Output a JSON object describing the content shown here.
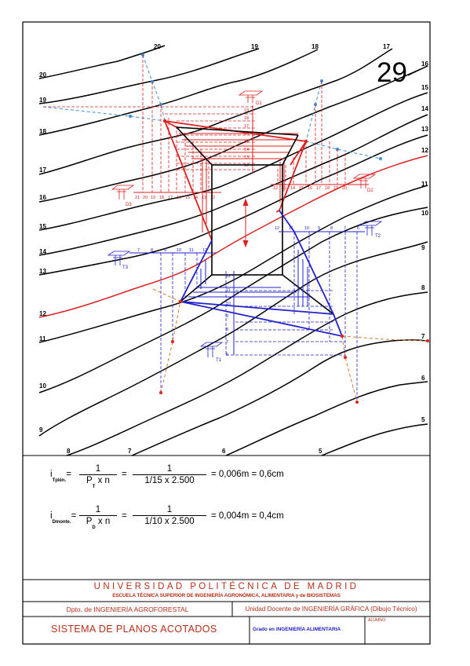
{
  "sheet": {
    "number": "29"
  },
  "contours": {
    "left_labels": [
      "20",
      "19",
      "18",
      "17",
      "16",
      "15",
      "14",
      "13",
      "12",
      "11",
      "10",
      "9",
      "8"
    ],
    "top_labels": [
      "20",
      "19",
      "18",
      "17"
    ],
    "right_labels": [
      "16",
      "15",
      "14",
      "13",
      "12",
      "11",
      "10",
      "9",
      "8",
      "7",
      "6",
      "5"
    ],
    "bottom_labels": [
      "7",
      "6",
      "5"
    ]
  },
  "upper_scales": {
    "left": [
      "21",
      "20",
      "19",
      "18",
      "17",
      "16",
      "15",
      "14",
      "13",
      "12"
    ],
    "right": [
      "12",
      "13",
      "14",
      "15",
      "16",
      "17",
      "18",
      "19",
      "20"
    ],
    "vertical": [
      "19",
      "18",
      "17",
      "16",
      "15",
      "14",
      "13",
      "12"
    ]
  },
  "lower_scales": {
    "top": [
      "7",
      "8",
      "9",
      "10",
      "11",
      "12"
    ],
    "right": [
      "12",
      "11",
      "10",
      "9",
      "8",
      "7",
      "6"
    ],
    "vertical": [
      "12",
      "11",
      "10",
      "9",
      "8",
      "7",
      "6"
    ]
  },
  "stations": {
    "d1": "D1",
    "d2": "D2",
    "d3": "D3",
    "t1": "T1",
    "t2": "T2",
    "t3": "T3"
  },
  "formulas": {
    "f1": {
      "lhs": "i",
      "sub": "Tplén.",
      "num": "1",
      "den_a": "P",
      "den_sub": "T",
      "den_b": " x  n",
      "num2": "1",
      "den2": "1/15  x  2.500",
      "result": "= 0,006m = 0,6cm"
    },
    "f2": {
      "lhs": "i",
      "sub": "Dmonte.",
      "num": "1",
      "den_a": "P",
      "den_sub": "D",
      "den_b": " x  n",
      "num2": "1",
      "den2": "1/10  x  2.500",
      "result": "= 0,004m = 0,4cm"
    }
  },
  "title_block": {
    "university": "UNIVERSIDAD POLITÉCNICA DE MADRID",
    "school": "ESCUELA TÉCNICA SUPERIOR DE INGENIERÍA AGRONÓMICA, ALIMENTARIA y de BIOSISTEMAS",
    "department": "Dpto. de INGENIERÍA AGROFORESTAL",
    "unit": "Unidad Docente de INGENIERÍA GRÁFICA (Dibujo Técnico)",
    "subject": "SISTEMA DE PLANOS ACOTADOS",
    "degree": "Grado en INGENIERÍA ALIMENTARIA",
    "student_label": "ALUMNO:"
  },
  "colors": {
    "ink": "#000000",
    "red": "#dd2222",
    "blue": "#2222cc",
    "lightblue": "#3a8fd6",
    "orange": "#d9782c",
    "title_red": "#b5301a"
  }
}
